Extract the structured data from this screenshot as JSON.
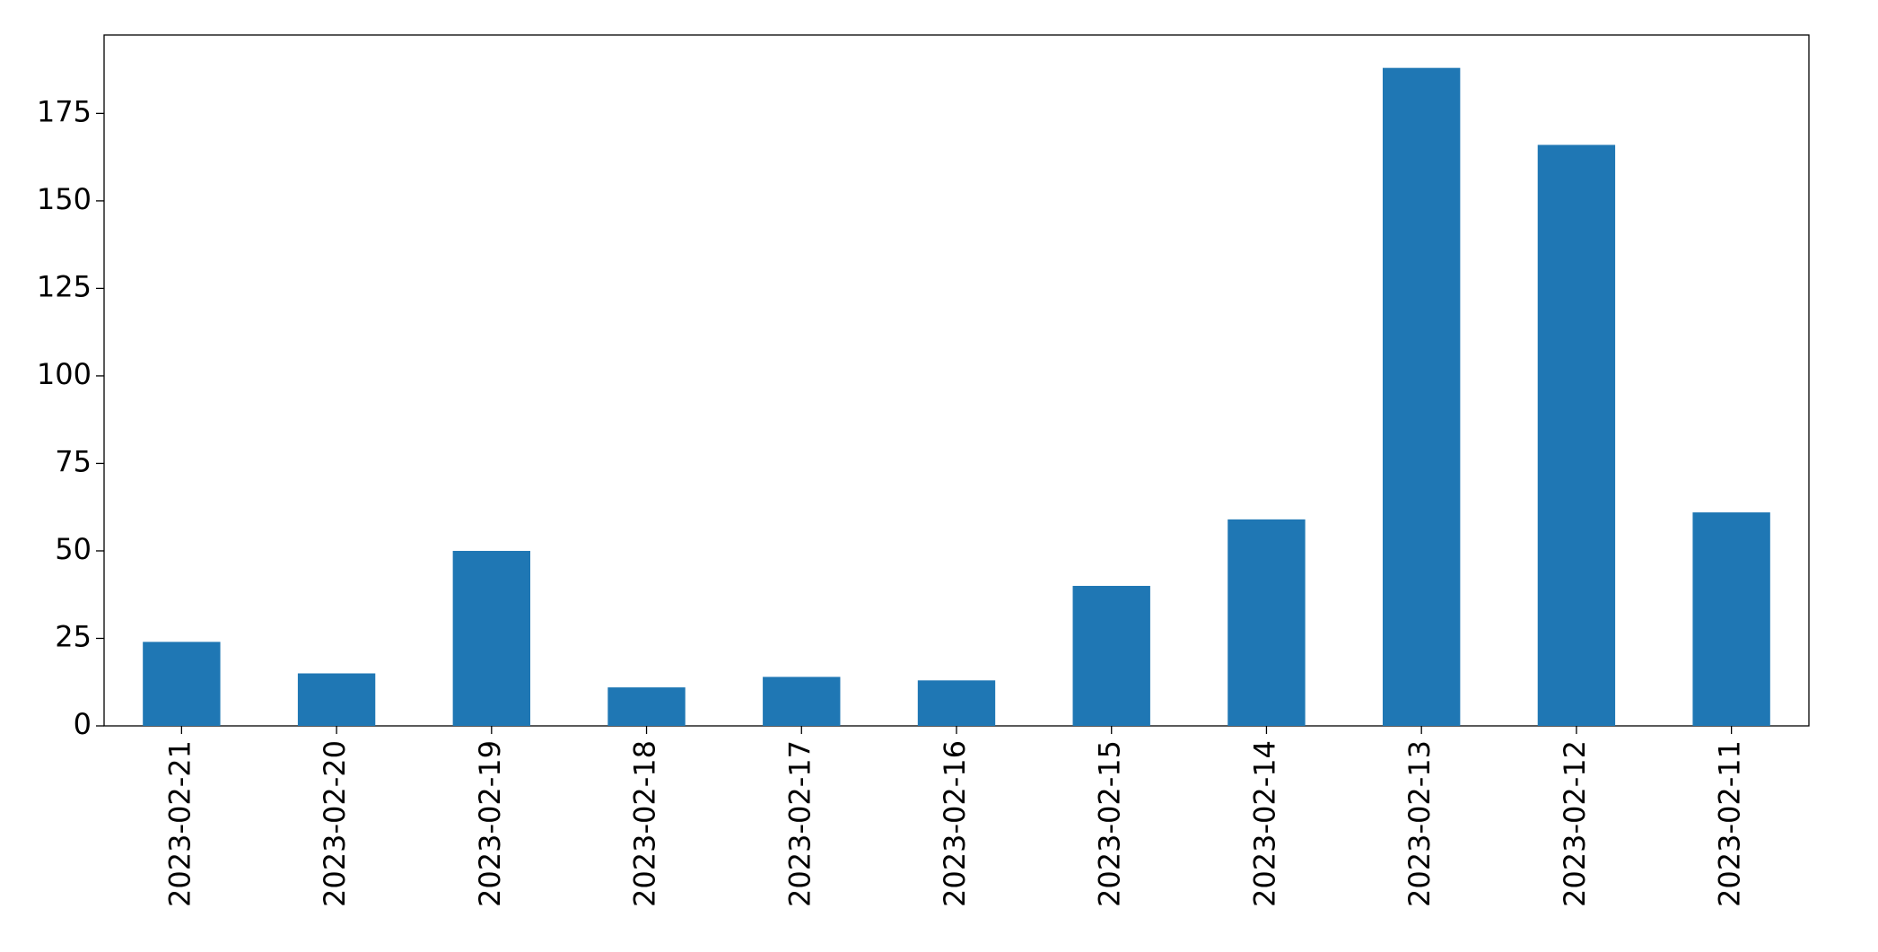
{
  "chart_data": {
    "type": "bar",
    "categories": [
      "2023-02-21",
      "2023-02-20",
      "2023-02-19",
      "2023-02-18",
      "2023-02-17",
      "2023-02-16",
      "2023-02-15",
      "2023-02-14",
      "2023-02-13",
      "2023-02-12",
      "2023-02-11"
    ],
    "values": [
      24,
      15,
      50,
      11,
      14,
      13,
      40,
      59,
      188,
      166,
      61
    ],
    "color": "#1f77b4",
    "ylim": [
      0,
      197.4
    ],
    "yticks": [
      0,
      25,
      50,
      75,
      100,
      125,
      150,
      175
    ],
    "grid": false
  }
}
